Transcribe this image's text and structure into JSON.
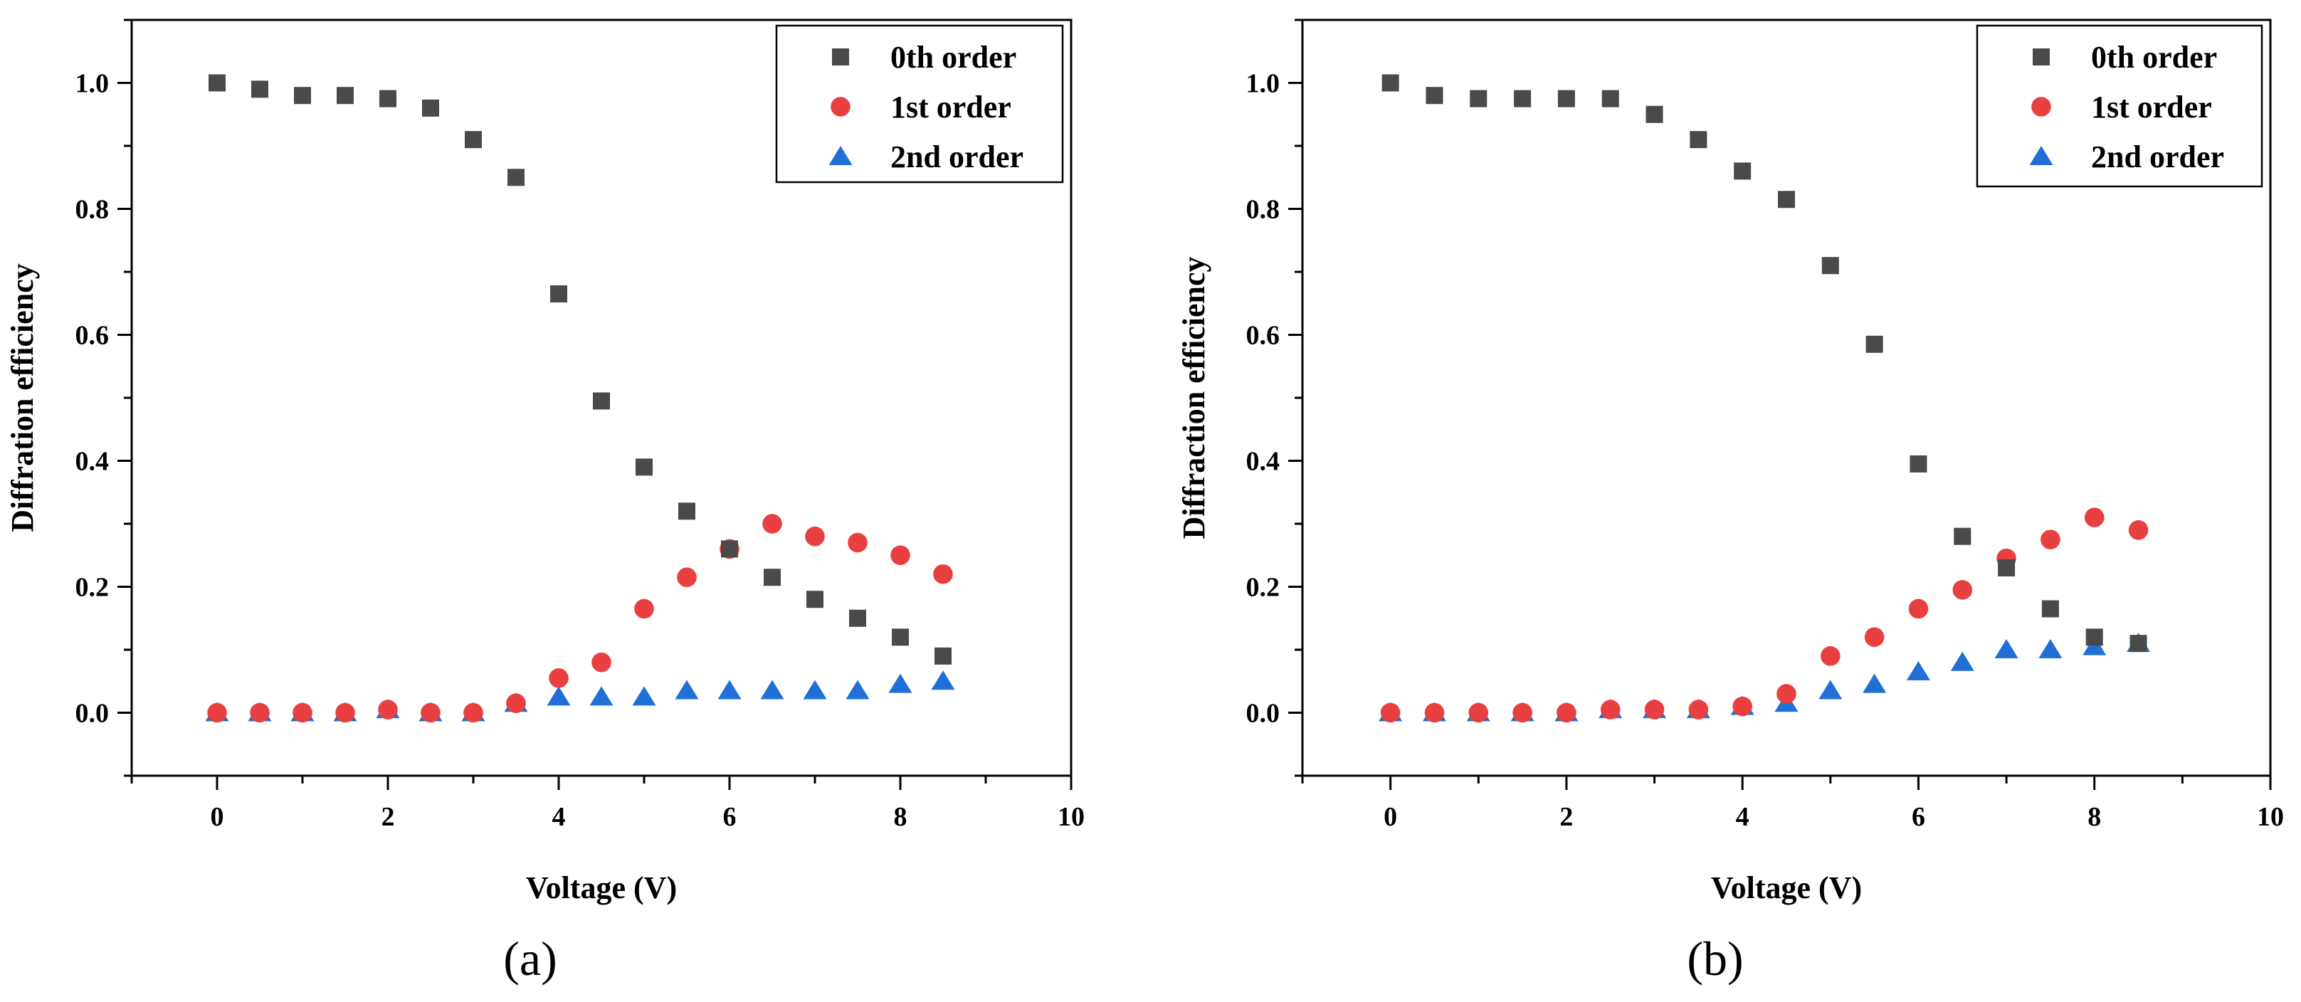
{
  "chart_data": [
    {
      "type": "scatter",
      "panel_label": "(a)",
      "xlabel": "Voltage (V)",
      "ylabel": "Diffration efficiency",
      "xlim": [
        -1,
        10
      ],
      "ylim": [
        -0.1,
        1.1
      ],
      "xticks": [
        0,
        2,
        4,
        6,
        8,
        10
      ],
      "xtick_labels": [
        "0",
        "2",
        "4",
        "6",
        "8",
        "10"
      ],
      "yticks": [
        0.0,
        0.2,
        0.4,
        0.6,
        0.8,
        1.0
      ],
      "ytick_labels": [
        "0.0",
        "0.2",
        "0.4",
        "0.6",
        "0.8",
        "1.0"
      ],
      "legend_position": "top-right",
      "x": [
        0,
        0.5,
        1,
        1.5,
        2,
        2.5,
        3,
        3.5,
        4,
        4.5,
        5,
        5.5,
        6,
        6.5,
        7,
        7.5,
        8,
        8.5
      ],
      "series": [
        {
          "name": "0th order",
          "marker": "square",
          "color": "#4a4a4a",
          "values": [
            1.0,
            0.99,
            0.98,
            0.98,
            0.975,
            0.96,
            0.91,
            0.85,
            0.665,
            0.495,
            0.39,
            0.32,
            0.26,
            0.215,
            0.18,
            0.15,
            0.12,
            0.09
          ]
        },
        {
          "name": "1st order",
          "marker": "circle",
          "color": "#e84040",
          "values": [
            0.0,
            0.0,
            0.0,
            0.0,
            0.005,
            0.0,
            0.0,
            0.015,
            0.055,
            0.08,
            0.165,
            0.215,
            0.26,
            0.3,
            0.28,
            0.27,
            0.25,
            0.22
          ]
        },
        {
          "name": "2nd order",
          "marker": "triangle",
          "color": "#1f6fd6",
          "values": [
            0.0,
            0.0,
            0.0,
            0.0,
            0.005,
            0.0,
            0.0,
            0.015,
            0.025,
            0.025,
            0.025,
            0.035,
            0.035,
            0.035,
            0.035,
            0.035,
            0.045,
            0.05
          ]
        }
      ]
    },
    {
      "type": "scatter",
      "panel_label": "(b)",
      "xlabel": "Voltage (V)",
      "ylabel": "Diffraction efficiency",
      "xlim": [
        -1,
        10
      ],
      "ylim": [
        -0.1,
        1.1
      ],
      "xticks": [
        0,
        2,
        4,
        6,
        8,
        10
      ],
      "xtick_labels": [
        "0",
        "2",
        "4",
        "6",
        "8",
        "10"
      ],
      "yticks": [
        0.0,
        0.2,
        0.4,
        0.6,
        0.8,
        1.0
      ],
      "ytick_labels": [
        "0.0",
        "0.2",
        "0.4",
        "0.6",
        "0.8",
        "1.0"
      ],
      "legend_position": "top-right",
      "x": [
        0,
        0.5,
        1,
        1.5,
        2,
        2.5,
        3,
        3.5,
        4,
        4.5,
        5,
        5.5,
        6,
        6.5,
        7,
        7.5,
        8,
        8.5
      ],
      "series": [
        {
          "name": "0th order",
          "marker": "square",
          "color": "#4a4a4a",
          "values": [
            1.0,
            0.98,
            0.975,
            0.975,
            0.975,
            0.975,
            0.95,
            0.91,
            0.86,
            0.815,
            0.71,
            0.585,
            0.395,
            0.28,
            0.23,
            0.165,
            0.12,
            0.11
          ]
        },
        {
          "name": "1st order",
          "marker": "circle",
          "color": "#e84040",
          "values": [
            0.0,
            0.0,
            0.0,
            0.0,
            0.0,
            0.005,
            0.005,
            0.005,
            0.01,
            0.03,
            0.09,
            0.12,
            0.165,
            0.195,
            0.245,
            0.275,
            0.31,
            0.29
          ]
        },
        {
          "name": "2nd order",
          "marker": "triangle",
          "color": "#1f6fd6",
          "values": [
            0.0,
            0.0,
            0.0,
            0.0,
            0.0,
            0.005,
            0.005,
            0.005,
            0.01,
            0.015,
            0.035,
            0.045,
            0.065,
            0.08,
            0.1,
            0.1,
            0.105,
            0.11
          ]
        }
      ]
    }
  ]
}
